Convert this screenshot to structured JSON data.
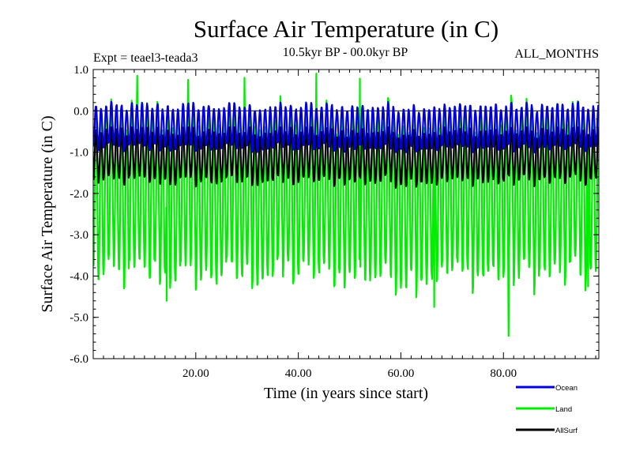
{
  "chart_data": {
    "type": "line",
    "title": "Surface Air Temperature (in C)",
    "experiment_label": "Expt = teael3-teada3",
    "period_label": "10.5kyr BP - 00.0kyr BP",
    "months_label": "ALL_MONTHS",
    "xlabel": "Time (in years since start)",
    "ylabel": "Surface Air Temperature (in C)",
    "xlim": [
      0,
      98.6
    ],
    "ylim": [
      -6.0,
      1.0
    ],
    "x_ticks": [
      20,
      40,
      60,
      80
    ],
    "x_tick_labels": [
      "20.00",
      "40.00",
      "60.00",
      "80.00"
    ],
    "y_ticks": [
      1.0,
      0.0,
      -1.0,
      -2.0,
      -3.0,
      -4.0,
      -5.0,
      -6.0
    ],
    "y_tick_labels": [
      "1.0",
      "0.0",
      "-1.0",
      "-2.0",
      "-3.0",
      "-4.0",
      "-5.0",
      "-6.0"
    ],
    "zero_line": 0.0,
    "series": [
      {
        "name": "Land",
        "color": "#00ee00",
        "summary": {
          "mean": -2.05,
          "seasonal_amplitude": 1.95,
          "year_noise": 0.45,
          "max": 0.9,
          "min": -5.45,
          "min_at_year": 81.0
        },
        "extremes": [
          {
            "x": 8.6,
            "y": 0.85
          },
          {
            "x": 18.5,
            "y": 0.75
          },
          {
            "x": 29.5,
            "y": 0.8
          },
          {
            "x": 43.5,
            "y": 0.9
          },
          {
            "x": 52.0,
            "y": 0.78
          },
          {
            "x": 14.3,
            "y": -4.6
          },
          {
            "x": 66.5,
            "y": -4.75
          },
          {
            "x": 81.0,
            "y": -5.45
          },
          {
            "x": 96.5,
            "y": -4.25
          }
        ]
      },
      {
        "name": "AllSurf",
        "color": "#000000",
        "summary": {
          "mean": -1.1,
          "seasonal_amplitude": 0.6,
          "year_noise": 0.15,
          "max": -0.4,
          "min": -2.4
        }
      },
      {
        "name": "Ocean",
        "color": "#0000dd",
        "summary": {
          "mean": -0.4,
          "seasonal_amplitude": 0.5,
          "year_noise": 0.12,
          "max": 0.55,
          "min": -1.35
        }
      }
    ],
    "legend": [
      {
        "name": "Ocean",
        "color": "#0000dd"
      },
      {
        "name": "Land",
        "color": "#00ee00"
      },
      {
        "name": "AllSurf",
        "color": "#000000"
      }
    ],
    "legend_position": "below-right"
  }
}
